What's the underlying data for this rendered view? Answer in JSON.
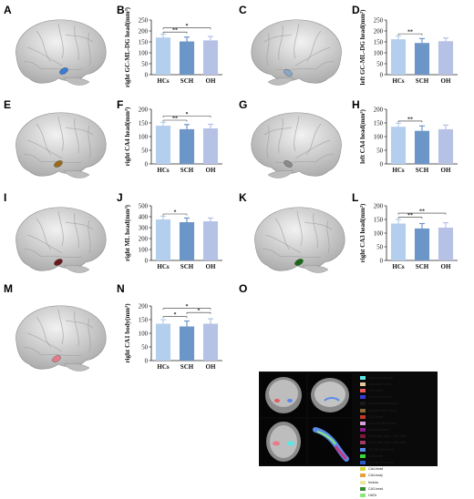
{
  "panel_letters": [
    "A",
    "B",
    "C",
    "D",
    "E",
    "F",
    "G",
    "H",
    "I",
    "J",
    "K",
    "L",
    "M",
    "N",
    "O"
  ],
  "colors": {
    "HCs": "#b4cfee",
    "SCH": "#6d96c8",
    "OH": "#b6c1e6",
    "axis": "#222222"
  },
  "brain_icons": [
    {
      "letter_index": 0,
      "name": "brain-A",
      "view": "right",
      "highlight": "#3a7bd5"
    },
    {
      "letter_index": 2,
      "name": "brain-C",
      "view": "left",
      "highlight": "#8aa8c8"
    },
    {
      "letter_index": 4,
      "name": "brain-E",
      "view": "right",
      "highlight": "#9a6a1a"
    },
    {
      "letter_index": 6,
      "name": "brain-G",
      "view": "left",
      "highlight": "#8a8a8a"
    },
    {
      "letter_index": 8,
      "name": "brain-I",
      "view": "right",
      "highlight": "#6a1a1a"
    },
    {
      "letter_index": 10,
      "name": "brain-K",
      "view": "right",
      "highlight": "#1a6a1a"
    },
    {
      "letter_index": 12,
      "name": "brain-M",
      "view": "right",
      "highlight": "#e87a8a"
    }
  ],
  "chart_data": [
    {
      "type": "bar",
      "letter_index": 1,
      "ylabel": "right GC-ML-DG head(mm³)",
      "categories": [
        "HCs",
        "SCH",
        "OH"
      ],
      "values": [
        170,
        152,
        157
      ],
      "errors": [
        15,
        20,
        18
      ],
      "ylim": [
        0,
        250
      ],
      "yticks": [
        0,
        50,
        100,
        150,
        200,
        250
      ],
      "ytick_labels": [
        "0",
        "50",
        "100",
        "150",
        "200",
        "250"
      ],
      "significance": [
        {
          "from": 0,
          "to": 1,
          "label": "**"
        },
        {
          "from": 0,
          "to": 2,
          "label": "*"
        }
      ]
    },
    {
      "type": "bar",
      "letter_index": 3,
      "ylabel": "left GC-ML-DG head(mm³)",
      "categories": [
        "HCs",
        "SCH",
        "OH"
      ],
      "values": [
        162,
        145,
        153
      ],
      "errors": [
        15,
        20,
        15
      ],
      "ylim": [
        0,
        250
      ],
      "yticks": [
        0,
        50,
        100,
        150,
        200,
        250
      ],
      "ytick_labels": [
        "0",
        "50",
        "100",
        "150",
        "200",
        "250"
      ],
      "significance": [
        {
          "from": 0,
          "to": 1,
          "label": "**"
        }
      ]
    },
    {
      "type": "bar",
      "letter_index": 5,
      "ylabel": "right CA4 head(mm³)",
      "categories": [
        "HCs",
        "SCH",
        "OH"
      ],
      "values": [
        140,
        127,
        130
      ],
      "errors": [
        12,
        17,
        15
      ],
      "ylim": [
        0,
        200
      ],
      "yticks": [
        0,
        50,
        100,
        150,
        200
      ],
      "ytick_labels": [
        "0",
        "50",
        "100",
        "150",
        "200"
      ],
      "significance": [
        {
          "from": 0,
          "to": 1,
          "label": "**"
        },
        {
          "from": 0,
          "to": 2,
          "label": "*"
        }
      ]
    },
    {
      "type": "bar",
      "letter_index": 7,
      "ylabel": "left CA4 head(mm³)",
      "categories": [
        "HCs",
        "SCH",
        "OH"
      ],
      "values": [
        136,
        121,
        127
      ],
      "errors": [
        13,
        18,
        15
      ],
      "ylim": [
        0,
        200
      ],
      "yticks": [
        0,
        50,
        100,
        150,
        200
      ],
      "ytick_labels": [
        "0",
        "50",
        "100",
        "150",
        "200"
      ],
      "significance": [
        {
          "from": 0,
          "to": 1,
          "label": "**"
        }
      ]
    },
    {
      "type": "bar",
      "letter_index": 9,
      "ylabel": "right ML head(mm³)",
      "categories": [
        "HCs",
        "SCH",
        "OH"
      ],
      "values": [
        375,
        350,
        358
      ],
      "errors": [
        30,
        38,
        30
      ],
      "ylim": [
        0,
        500
      ],
      "yticks": [
        0,
        100,
        200,
        300,
        400,
        500
      ],
      "ytick_labels": [
        "0",
        "100",
        "200",
        "300",
        "400",
        "500"
      ],
      "significance": [
        {
          "from": 0,
          "to": 1,
          "label": "*"
        }
      ]
    },
    {
      "type": "bar",
      "letter_index": 11,
      "ylabel": "right CA3 head(mm³)",
      "categories": [
        "HCs",
        "SCH",
        "OH"
      ],
      "values": [
        135,
        117,
        120
      ],
      "errors": [
        15,
        18,
        18
      ],
      "ylim": [
        0,
        200
      ],
      "yticks": [
        0,
        50,
        100,
        150,
        200
      ],
      "ytick_labels": [
        "0",
        "50",
        "100",
        "150",
        "200"
      ],
      "significance": [
        {
          "from": 0,
          "to": 1,
          "label": "**"
        },
        {
          "from": 0,
          "to": 2,
          "label": "**"
        }
      ]
    },
    {
      "type": "bar",
      "letter_index": 13,
      "ylabel": "right CA1 body(mm³)",
      "categories": [
        "HCs",
        "SCH",
        "OH"
      ],
      "values": [
        135,
        125,
        135
      ],
      "errors": [
        15,
        20,
        18
      ],
      "ylim": [
        0,
        200
      ],
      "yticks": [
        0,
        50,
        100,
        150,
        200
      ],
      "ytick_labels": [
        "0",
        "50",
        "100",
        "150",
        "200"
      ],
      "significance": [
        {
          "from": 0,
          "to": 1,
          "label": "*"
        },
        {
          "from": 1,
          "to": 2,
          "label": "*"
        },
        {
          "from": 0,
          "to": 2,
          "label": "*"
        }
      ]
    }
  ],
  "segmentation_legend": {
    "letter_index": 14,
    "items": [
      {
        "label": "hippocampal_tail",
        "color": "#5fe8e8"
      },
      {
        "label": "subiculum-body",
        "color": "#e8c9a0"
      },
      {
        "label": "CA1-body",
        "color": "#e85a5a"
      },
      {
        "label": "subiculum-head",
        "color": "#3a3ad8"
      },
      {
        "label": "hippocampal-fissure",
        "color": "#1a1a1a"
      },
      {
        "label": "presubiculum-head",
        "color": "#8a6a3a"
      },
      {
        "label": "CA1-head",
        "color": "#c0392b"
      },
      {
        "label": "presubiculum-body",
        "color": "#d8a0d8"
      },
      {
        "label": "parasubiculum",
        "color": "#8a1a8a"
      },
      {
        "label": "molecular_layer_HP-head",
        "color": "#7a1a3a"
      },
      {
        "label": "molecular_layer_HP-body",
        "color": "#a03a6a"
      },
      {
        "label": "GC-ML-DG-head",
        "color": "#5a8ae8"
      },
      {
        "label": "CA3-body",
        "color": "#3ad83a"
      },
      {
        "label": "GC-ML-DG-body",
        "color": "#2a5ac8"
      },
      {
        "label": "CA4-head",
        "color": "#d8d83a"
      },
      {
        "label": "CA4-body",
        "color": "#e8a03a"
      },
      {
        "label": "fimbria",
        "color": "#e8e8a0"
      },
      {
        "label": "CA3-head",
        "color": "#3a8a3a"
      },
      {
        "label": "HATA",
        "color": "#8ae87a"
      }
    ]
  }
}
